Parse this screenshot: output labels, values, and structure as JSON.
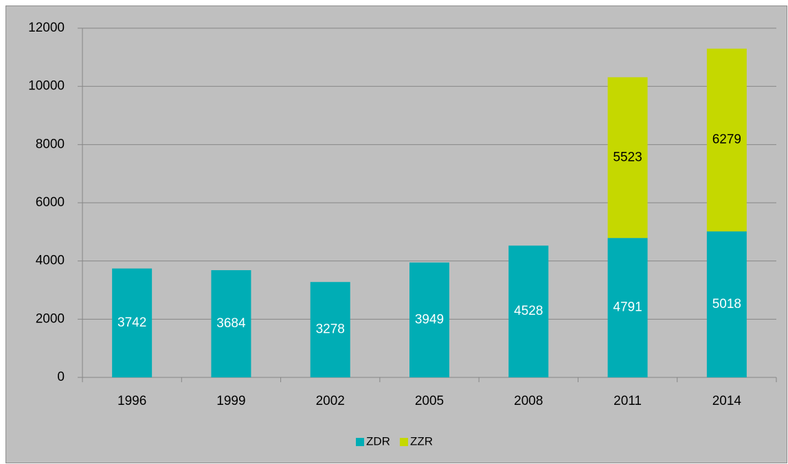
{
  "chart_data": {
    "type": "stacked_bar",
    "categories": [
      "1996",
      "1999",
      "2002",
      "2005",
      "2008",
      "2011",
      "2014"
    ],
    "series": [
      {
        "name": "ZDR",
        "color": "#00adb5",
        "label_color": "#ffffff",
        "values": [
          3742,
          3684,
          3278,
          3949,
          4528,
          4791,
          5018
        ]
      },
      {
        "name": "ZZR",
        "color": "#c5d800",
        "label_color": "#000000",
        "values": [
          null,
          null,
          null,
          null,
          null,
          5523,
          6279
        ]
      }
    ],
    "ylim": [
      0,
      12000
    ],
    "yticks": [
      0,
      2000,
      4000,
      6000,
      8000,
      10000,
      12000
    ],
    "grid": true,
    "legend": "bottom"
  }
}
